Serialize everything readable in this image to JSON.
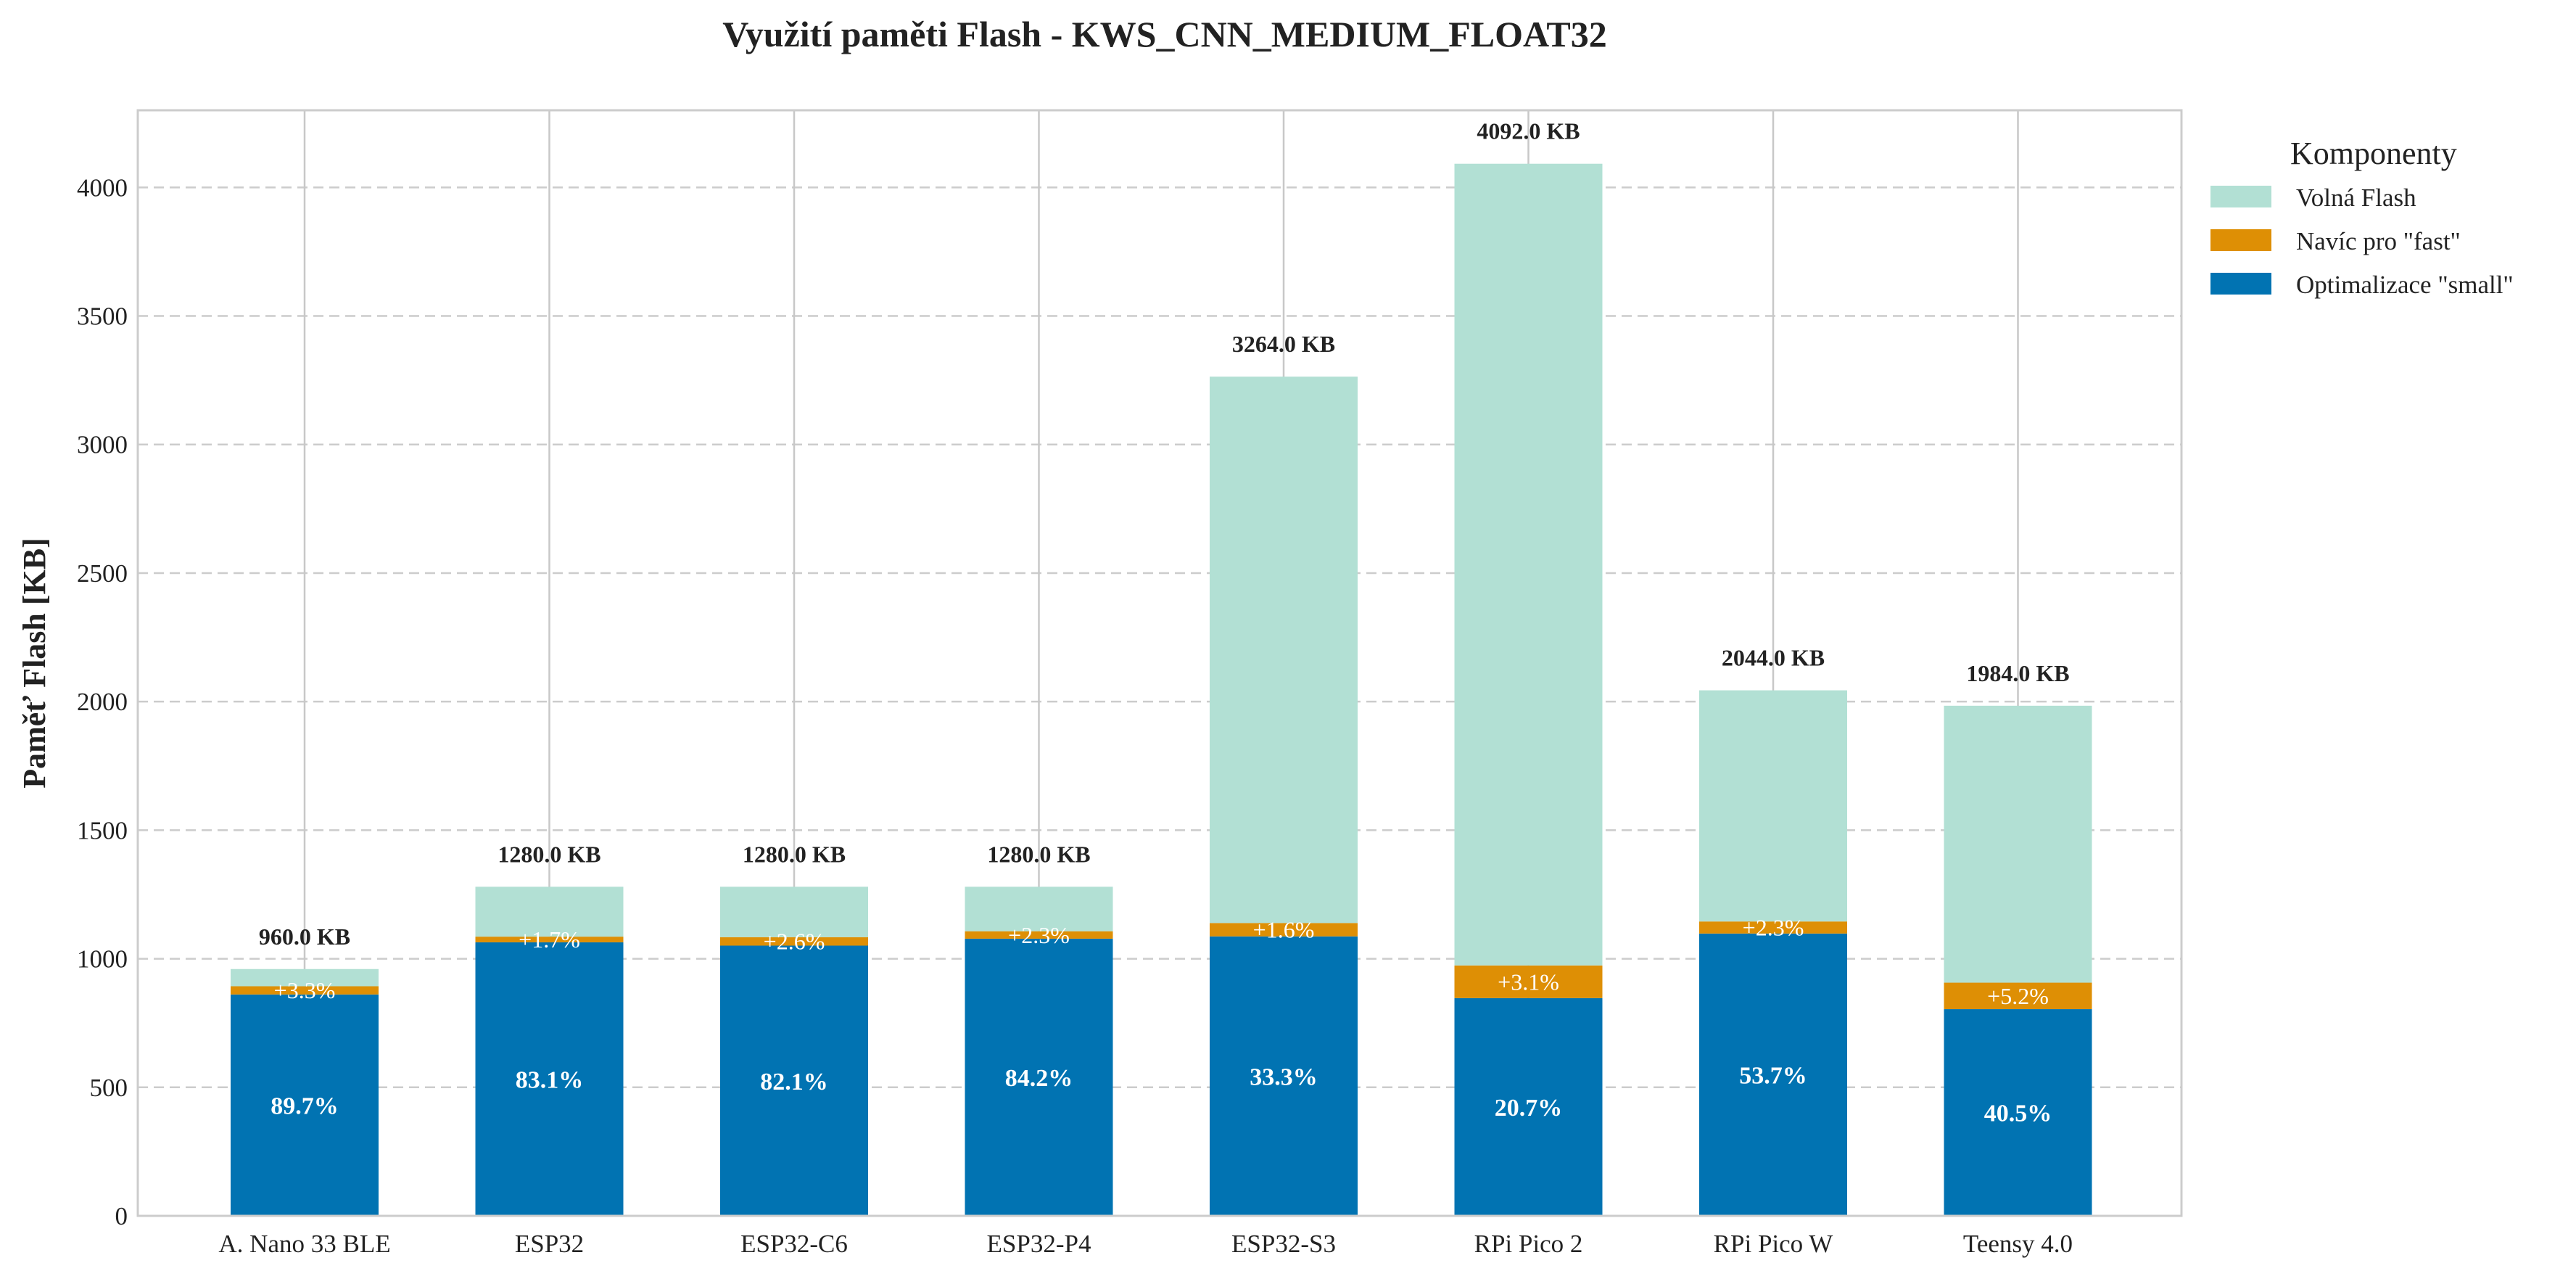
{
  "chart_data": {
    "type": "bar",
    "stacked": true,
    "title": "Využití paměti Flash - KWS_CNN_MEDIUM_FLOAT32",
    "xlabel": "",
    "ylabel": "Paměť Flash [KB]",
    "ylim": [
      0,
      4300
    ],
    "yticks": [
      "0",
      "500",
      "1000",
      "1500",
      "2000",
      "2500",
      "3000",
      "3500",
      "4000"
    ],
    "grid": "horizontal dashed, vertical solid",
    "categories": [
      "A. Nano 33 BLE",
      "ESP32",
      "ESP32-C6",
      "ESP32-P4",
      "ESP32-S3",
      "RPi Pico 2",
      "RPi Pico W",
      "Teensy 4.0"
    ],
    "totals": [
      960,
      1280,
      1280,
      1280,
      3264,
      4092,
      2044,
      1984
    ],
    "total_labels": [
      "960.0 KB",
      "1280.0 KB",
      "1280.0 KB",
      "1280.0 KB",
      "3264.0 KB",
      "4092.0 KB",
      "2044.0 KB",
      "1984.0 KB"
    ],
    "series": [
      {
        "name": "Optimalizace \"small\"",
        "color": "#0173b2",
        "values": [
          861,
          1064,
          1051,
          1078,
          1087,
          847,
          1098,
          804
        ],
        "labels": [
          "89.7%",
          "83.1%",
          "82.1%",
          "84.2%",
          "33.3%",
          "20.7%",
          "53.7%",
          "40.5%"
        ]
      },
      {
        "name": "Navíc pro \"fast\"",
        "color": "#de8f05",
        "values": [
          32,
          22,
          33,
          29,
          52,
          127,
          47,
          103
        ],
        "labels": [
          "+3.3%",
          "+1.7%",
          "+2.6%",
          "+2.3%",
          "+1.6%",
          "+3.1%",
          "+2.3%",
          "+5.2%"
        ]
      },
      {
        "name": "Volná Flash",
        "color": "#b2e0d4",
        "values": [
          67,
          194,
          196,
          173,
          2125,
          3118,
          899,
          1077
        ]
      }
    ],
    "legend": {
      "title": "Komponenty",
      "placement": "outside-right-top",
      "entries": [
        "Volná Flash",
        "Navíc pro \"fast\"",
        "Optimalizace \"small\""
      ]
    }
  }
}
